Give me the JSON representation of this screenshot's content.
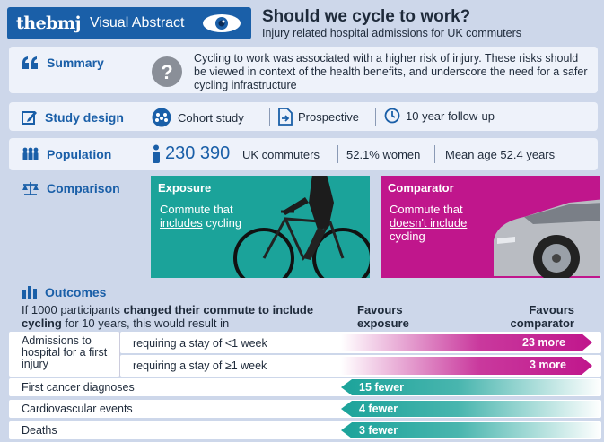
{
  "header": {
    "brand": "thebmj",
    "label": "Visual Abstract",
    "title": "Should we cycle to work?",
    "subtitle": "Injury related hospital admissions for UK commuters"
  },
  "summary": {
    "label": "Summary",
    "text": "Cycling to work was associated with a higher risk of injury. These risks should be viewed in context of the health benefits, and underscore the need for a safer cycling infrastructure"
  },
  "study_design": {
    "label": "Study design",
    "items": [
      "Cohort study",
      "Prospective",
      "10 year follow-up"
    ]
  },
  "population": {
    "label": "Population",
    "count": "230 390",
    "count_label": "UK commuters",
    "women": "52.1% women",
    "age": "Mean age 52.4 years"
  },
  "comparison": {
    "label": "Comparison",
    "exposure": {
      "head": "Exposure",
      "text_a": "Commute that",
      "text_b": "includes",
      "text_c": " cycling"
    },
    "comparator": {
      "head": "Comparator",
      "text_a": "Commute that",
      "text_b": "doesn't include",
      "text_c": "cycling"
    }
  },
  "outcomes": {
    "label": "Outcomes",
    "intro_a": "If 1000 participants ",
    "intro_b": "changed their commute to include cycling",
    "intro_c": " for 10 years, this would result in",
    "favours_exposure_1": "Favours",
    "favours_exposure_2": "exposure",
    "favours_comparator_1": "Favours",
    "favours_comparator_2": "comparator",
    "admissions_label": "Admissions to hospital for a first injury",
    "rows": [
      {
        "label": "requiring a stay of <1 week",
        "value": "23 more"
      },
      {
        "label": "requiring a stay of ≥1 week",
        "value": "3 more"
      },
      {
        "label": "First cancer diagnoses",
        "value": "15 fewer"
      },
      {
        "label": "Cardiovascular events",
        "value": "4 fewer"
      },
      {
        "label": "Deaths",
        "value": "3 fewer"
      }
    ]
  },
  "colors": {
    "brand_blue": "#1a5fa8",
    "exposure_teal": "#1ba39a",
    "comparator_magenta": "#c0168c"
  }
}
